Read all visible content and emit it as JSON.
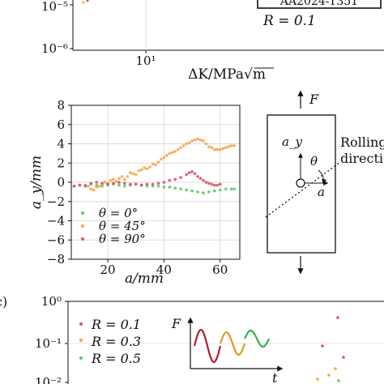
{
  "panel_a": {
    "box_label": "AA2024-T351",
    "r_label": "R = 0.1",
    "y_ticks": [
      "10⁻⁵",
      "10⁻⁶"
    ],
    "x_tick": "10¹",
    "xlabel": "ΔK/MPa√m"
  },
  "schematic": {
    "force_top": "F",
    "ay": "a_y",
    "theta": "θ",
    "a": "a",
    "rolling": "Rolling",
    "direction": "direction"
  },
  "panel_c": {
    "label": "c)",
    "F": "F",
    "t": "t",
    "legend": [
      "R = 0.1",
      "R = 0.3",
      "R = 0.5"
    ],
    "y_ticks": [
      "10⁰",
      "10⁻¹",
      "10⁻²"
    ]
  },
  "colors": {
    "theta0": "#5ec95e",
    "theta45": "#f7a54a",
    "theta90": "#d9536a",
    "wave_red": "#b01e2e",
    "wave_orange": "#e39a1f",
    "wave_green": "#37b24a"
  },
  "chart_data": [
    {
      "type": "scatter",
      "title": "",
      "xlabel": "a/mm",
      "ylabel": "a_y/mm",
      "xlim": [
        7,
        67
      ],
      "ylim": [
        -8,
        8
      ],
      "x_ticks": [
        20,
        40,
        60
      ],
      "y_ticks": [
        8,
        6,
        4,
        2,
        0,
        -2,
        -4,
        -6,
        -8
      ],
      "grid": true,
      "legend_position": "bottom-left",
      "series": [
        {
          "name": "θ = 0°",
          "color_key": "theta0",
          "points": [
            [
              8,
              -0.4
            ],
            [
              10,
              -0.3
            ],
            [
              12,
              -0.3
            ],
            [
              14,
              -0.2
            ],
            [
              16,
              -0.3
            ],
            [
              18,
              -0.4
            ],
            [
              20,
              -0.3
            ],
            [
              22,
              -0.2
            ],
            [
              24,
              -0.3
            ],
            [
              26,
              -0.4
            ],
            [
              28,
              -0.3
            ],
            [
              30,
              -0.2
            ],
            [
              32,
              -0.3
            ],
            [
              34,
              -0.4
            ],
            [
              36,
              -0.4
            ],
            [
              38,
              -0.4
            ],
            [
              40,
              -0.5
            ],
            [
              42,
              -0.5
            ],
            [
              44,
              -0.6
            ],
            [
              46,
              -0.7
            ],
            [
              48,
              -0.8
            ],
            [
              50,
              -0.9
            ],
            [
              52,
              -1.0
            ],
            [
              54,
              -1.1
            ],
            [
              56,
              -1.0
            ],
            [
              58,
              -0.9
            ],
            [
              60,
              -0.8
            ],
            [
              62,
              -0.7
            ],
            [
              64,
              -0.7
            ],
            [
              65,
              -0.7
            ]
          ]
        },
        {
          "name": "θ = 45°",
          "color_key": "theta45",
          "points": [
            [
              13,
              -0.4
            ],
            [
              14,
              -0.7
            ],
            [
              15,
              -0.8
            ],
            [
              16,
              -0.5
            ],
            [
              17,
              -0.4
            ],
            [
              18,
              -0.2
            ],
            [
              19,
              0.0
            ],
            [
              20,
              -0.1
            ],
            [
              21,
              0.2
            ],
            [
              22,
              0.3
            ],
            [
              23,
              0.1
            ],
            [
              24,
              0.4
            ],
            [
              25,
              0.6
            ],
            [
              26,
              0.3
            ],
            [
              27,
              0.6
            ],
            [
              28,
              1.0
            ],
            [
              29,
              0.9
            ],
            [
              30,
              0.8
            ],
            [
              31,
              1.2
            ],
            [
              32,
              1.3
            ],
            [
              33,
              1.5
            ],
            [
              34,
              1.4
            ],
            [
              35,
              1.6
            ],
            [
              36,
              1.9
            ],
            [
              37,
              1.8
            ],
            [
              38,
              2.1
            ],
            [
              39,
              2.4
            ],
            [
              40,
              2.6
            ],
            [
              41,
              2.8
            ],
            [
              42,
              3.0
            ],
            [
              43,
              3.1
            ],
            [
              44,
              3.2
            ],
            [
              45,
              3.4
            ],
            [
              46,
              3.6
            ],
            [
              47,
              3.8
            ],
            [
              48,
              4.0
            ],
            [
              49,
              4.1
            ],
            [
              50,
              4.3
            ],
            [
              51,
              4.4
            ],
            [
              52,
              4.5
            ],
            [
              53,
              4.4
            ],
            [
              54,
              4.3
            ],
            [
              55,
              4.0
            ],
            [
              56,
              3.7
            ],
            [
              57,
              3.6
            ],
            [
              58,
              3.4
            ],
            [
              59,
              3.4
            ],
            [
              60,
              3.4
            ],
            [
              61,
              3.5
            ],
            [
              62,
              3.6
            ],
            [
              63,
              3.7
            ],
            [
              64,
              3.8
            ],
            [
              65,
              3.8
            ]
          ]
        },
        {
          "name": "θ = 90°",
          "color_key": "theta90",
          "points": [
            [
              8,
              -0.4
            ],
            [
              10,
              -0.3
            ],
            [
              12,
              -0.4
            ],
            [
              14,
              -0.1
            ],
            [
              16,
              0.0
            ],
            [
              18,
              -0.1
            ],
            [
              20,
              -0.2
            ],
            [
              22,
              -0.1
            ],
            [
              24,
              0.0
            ],
            [
              26,
              -0.1
            ],
            [
              28,
              -0.2
            ],
            [
              30,
              -0.2
            ],
            [
              32,
              -0.3
            ],
            [
              34,
              -0.2
            ],
            [
              36,
              -0.2
            ],
            [
              38,
              -0.1
            ],
            [
              40,
              0.0
            ],
            [
              42,
              0.2
            ],
            [
              44,
              0.3
            ],
            [
              46,
              0.5
            ],
            [
              48,
              0.8
            ],
            [
              49,
              1.0
            ],
            [
              50,
              1.1
            ],
            [
              51,
              0.9
            ],
            [
              52,
              0.6
            ],
            [
              53,
              0.4
            ],
            [
              54,
              0.2
            ],
            [
              55,
              0.0
            ],
            [
              56,
              -0.1
            ],
            [
              57,
              -0.2
            ],
            [
              58,
              -0.3
            ],
            [
              59,
              -0.3
            ],
            [
              60,
              -0.2
            ]
          ]
        }
      ]
    }
  ]
}
